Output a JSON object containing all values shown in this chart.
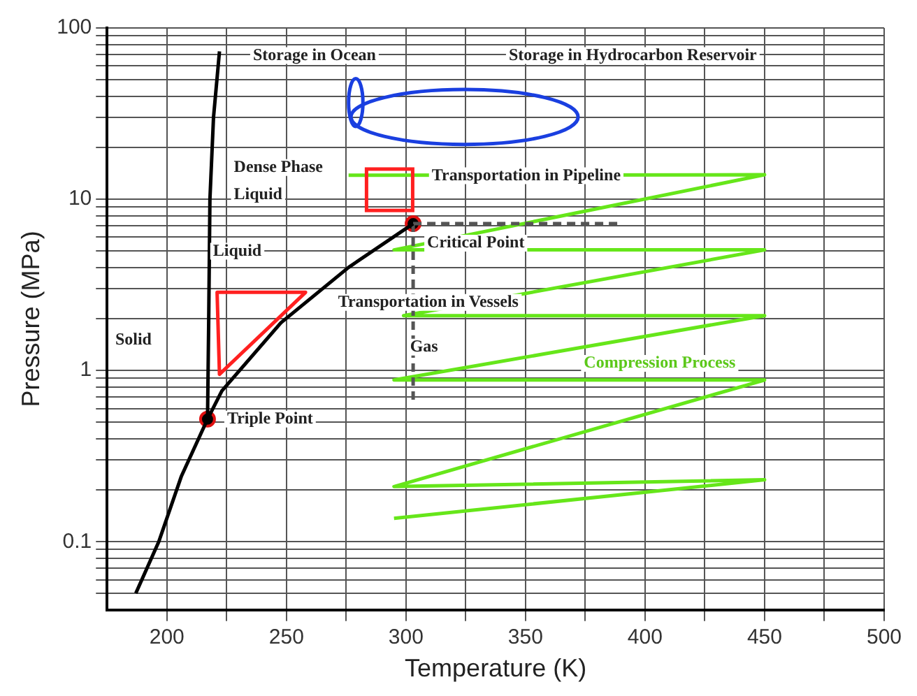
{
  "chart_data": {
    "type": "line",
    "xlabel": "Temperature (K)",
    "ylabel": "Pressure (MPa)",
    "log": "y",
    "grid": true,
    "legend": false,
    "xlim": [
      175,
      500
    ],
    "xticks": [
      200,
      {
        "value": 225,
        "label": null
      },
      250,
      {
        "value": 275,
        "label": null
      },
      300,
      {
        "value": 325,
        "label": null
      },
      350,
      {
        "value": 375,
        "label": null
      },
      400,
      {
        "value": 425,
        "label": null
      },
      450,
      {
        "value": 475,
        "label": null
      },
      500
    ],
    "ylim": [
      0.04,
      100
    ],
    "yticks": [
      {
        "value": 0.05,
        "label": null
      },
      {
        "value": 0.06,
        "label": null
      },
      {
        "value": 0.07,
        "label": null
      },
      {
        "value": 0.08,
        "label": null
      },
      {
        "value": 0.09,
        "label": null
      },
      0.1,
      {
        "value": 0.2,
        "label": null
      },
      {
        "value": 0.3,
        "label": null
      },
      {
        "value": 0.4,
        "label": null
      },
      {
        "value": 0.5,
        "label": null
      },
      {
        "value": 0.6,
        "label": null
      },
      {
        "value": 0.7,
        "label": null
      },
      {
        "value": 0.8,
        "label": null
      },
      {
        "value": 0.9,
        "label": null
      },
      1,
      {
        "value": 2,
        "label": null
      },
      {
        "value": 3,
        "label": null
      },
      {
        "value": 4,
        "label": null
      },
      {
        "value": 5,
        "label": null
      },
      {
        "value": 6,
        "label": null
      },
      {
        "value": 7,
        "label": null
      },
      {
        "value": 8,
        "label": null
      },
      {
        "value": 9,
        "label": null
      },
      10,
      {
        "value": 20,
        "label": null
      },
      {
        "value": 30,
        "label": null
      },
      {
        "value": 40,
        "label": null
      },
      {
        "value": 50,
        "label": null
      },
      {
        "value": 60,
        "label": null
      },
      {
        "value": 70,
        "label": null
      },
      {
        "value": 80,
        "label": null
      },
      {
        "value": 90,
        "label": null
      },
      100
    ],
    "series": [
      {
        "type": "line",
        "color": "#000000",
        "marker": "none",
        "x": [
          187,
          196.6,
          206,
          217
        ],
        "values": [
          0.05,
          0.1,
          0.24,
          0.52
        ]
      },
      {
        "type": "line",
        "color": "#000000",
        "marker": "none",
        "x": [
          217,
          217.5,
          218,
          219.5,
          222
        ],
        "values": [
          0.52,
          2,
          10,
          30,
          73
        ]
      },
      {
        "type": "line",
        "color": "#000000",
        "marker": "none",
        "x": [
          217,
          223,
          247.7,
          276,
          303
        ],
        "values": [
          0.52,
          0.76,
          1.9,
          4,
          7.2
        ]
      },
      {
        "type": "line",
        "color": "#555555",
        "marker": "none",
        "line_style": "dashed",
        "x": [
          303,
          303
        ],
        "values": [
          7.2,
          0.63
        ]
      },
      {
        "type": "line",
        "color": "#555555",
        "marker": "none",
        "line_style": "dashed",
        "x": [
          303,
          390
        ],
        "values": [
          7.2,
          7.2
        ]
      },
      {
        "type": "line",
        "color": "#66e61a",
        "marker": "none",
        "x": [
          276,
          450,
          295,
          450,
          299,
          450,
          295,
          450,
          295,
          450,
          295
        ],
        "values": [
          13.8,
          13.9,
          5.06,
          5.06,
          2.09,
          2.09,
          0.88,
          0.88,
          0.21,
          0.23,
          0.137
        ]
      },
      {
        "type": "scatter",
        "color": "#e01010",
        "marker": "circle",
        "x": [
          217,
          303
        ],
        "values": [
          0.52,
          7.2
        ]
      }
    ],
    "annotations": [
      "Storage in Ocean",
      "Storage in Hydrocarbon Reservoir",
      "Dense Phase",
      "Liquid",
      "Liquid",
      "Transportation in Pipeline",
      {
        "text": "Critical Point",
        "x": 303,
        "y": 7.2
      },
      "Transportation in Vessels",
      "Solid",
      "Gas",
      "Compression Process",
      {
        "text": "Triple Point",
        "x": 217,
        "y": 0.52
      }
    ]
  }
}
